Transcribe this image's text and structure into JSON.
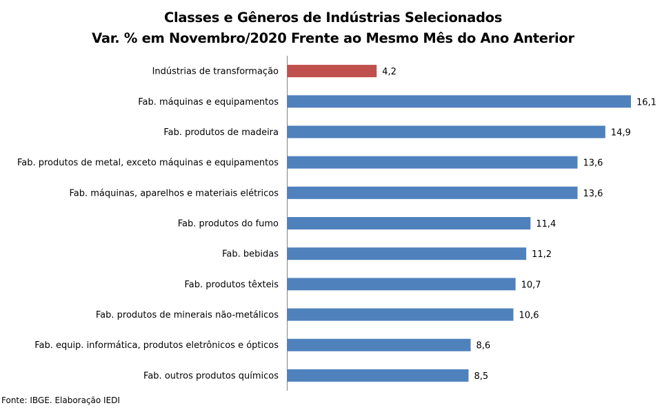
{
  "title_line1": "Classes e Gêneros de Indústrias Selecionados",
  "title_line2": "Var. % em Novembro/2020 Frente ao Mesmo Mês do Ano Anterior",
  "source": "Fonte: IBGE. Elaboração IEDI",
  "colors": {
    "highlight": "#C0504D",
    "bar": "#4F81BD",
    "axis": "#808080"
  },
  "chart_data": {
    "type": "bar",
    "orientation": "horizontal",
    "title": "Classes e Gêneros de Indústrias Selecionados — Var. % em Novembro/2020 Frente ao Mesmo Mês do Ano Anterior",
    "categories": [
      "Indústrias de transformação",
      "Fab. máquinas e equipamentos",
      "Fab. produtos de madeira",
      "Fab. produtos de metal, exceto máquinas e equipamentos",
      "Fab. máquinas, aparelhos e materiais elétricos",
      "Fab. produtos do fumo",
      "Fab. bebidas",
      "Fab. produtos têxteis",
      "Fab. produtos de minerais não-metálicos",
      "Fab. equip. informática, produtos eletrônicos e ópticos",
      "Fab. outros produtos químicos"
    ],
    "values": [
      4.2,
      16.1,
      14.9,
      13.6,
      13.6,
      11.4,
      11.2,
      10.7,
      10.6,
      8.6,
      8.5
    ],
    "value_labels": [
      "4,2",
      "16,1",
      "14,9",
      "13,6",
      "13,6",
      "11,4",
      "11,2",
      "10,7",
      "10,6",
      "8,6",
      "8,5"
    ],
    "highlight_index": 0,
    "xlim": [
      0,
      16.1
    ],
    "grid": false,
    "legend": "none",
    "xlabel": "",
    "ylabel": ""
  }
}
